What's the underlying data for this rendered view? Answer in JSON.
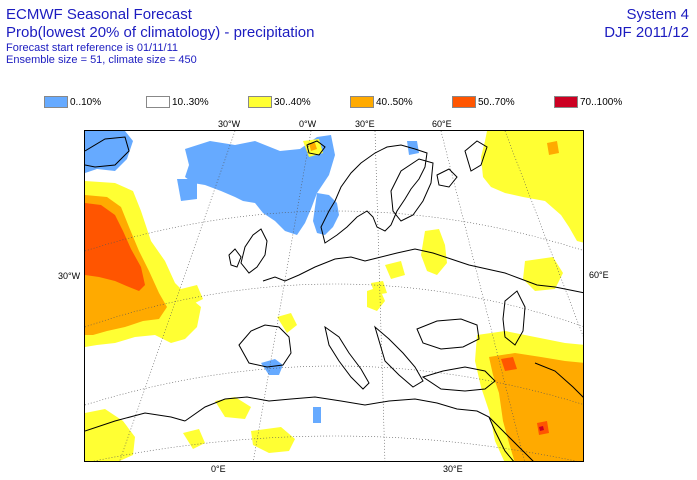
{
  "header": {
    "title_line1": "ECMWF Seasonal Forecast",
    "title_line2": "Prob(lowest 20% of climatology) - precipitation",
    "start_reference": "Forecast start reference is 01/11/11",
    "ensemble": "Ensemble size = 51, climate size = 450",
    "system": "System 4",
    "period": "DJF 2011/12"
  },
  "legend": [
    {
      "label": "0..10%",
      "color": "#66aaff"
    },
    {
      "label": "10..30%",
      "color": "#ffffff"
    },
    {
      "label": "30..40%",
      "color": "#ffff33"
    },
    {
      "label": "40..50%",
      "color": "#ffaa00"
    },
    {
      "label": "50..70%",
      "color": "#ff5500"
    },
    {
      "label": "70..100%",
      "color": "#cc0022"
    }
  ],
  "axis_labels": {
    "top": [
      "30°W",
      "0°W",
      "30°E",
      "60°E"
    ],
    "left": "30°W",
    "right": "60°E",
    "bottom": [
      "0°E",
      "30°E"
    ]
  }
}
